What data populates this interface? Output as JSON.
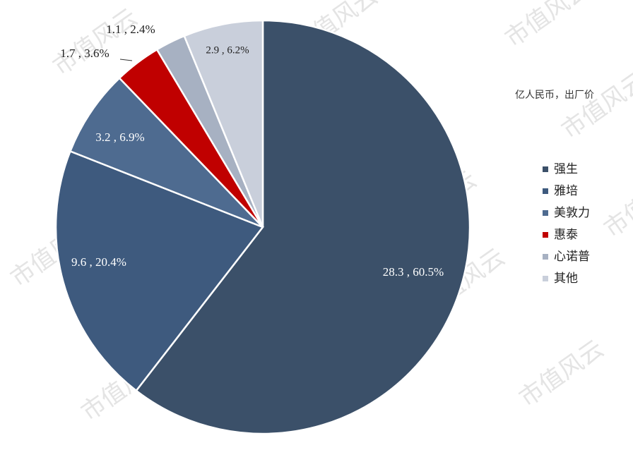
{
  "chart_data": {
    "type": "pie",
    "unit_label": "亿人民币，出厂价",
    "watermark": "市值风云",
    "categories": [
      "强生",
      "雅培",
      "美敦力",
      "惠泰",
      "心诺普",
      "其他"
    ],
    "values": [
      28.3,
      9.6,
      3.2,
      1.7,
      1.1,
      2.9
    ],
    "value_labels": [
      "28.3 , 60.5%",
      "9.6 , 20.4%",
      "3.2 , 6.9%",
      "1.7 , 3.6%",
      "1.1 , 2.4%",
      "2.9 , 6.2%"
    ],
    "colors": [
      "#3b5069",
      "#3e5a7e",
      "#4e6b90",
      "#c00000",
      "#a7b1c2",
      "#c9cfdb"
    ]
  }
}
